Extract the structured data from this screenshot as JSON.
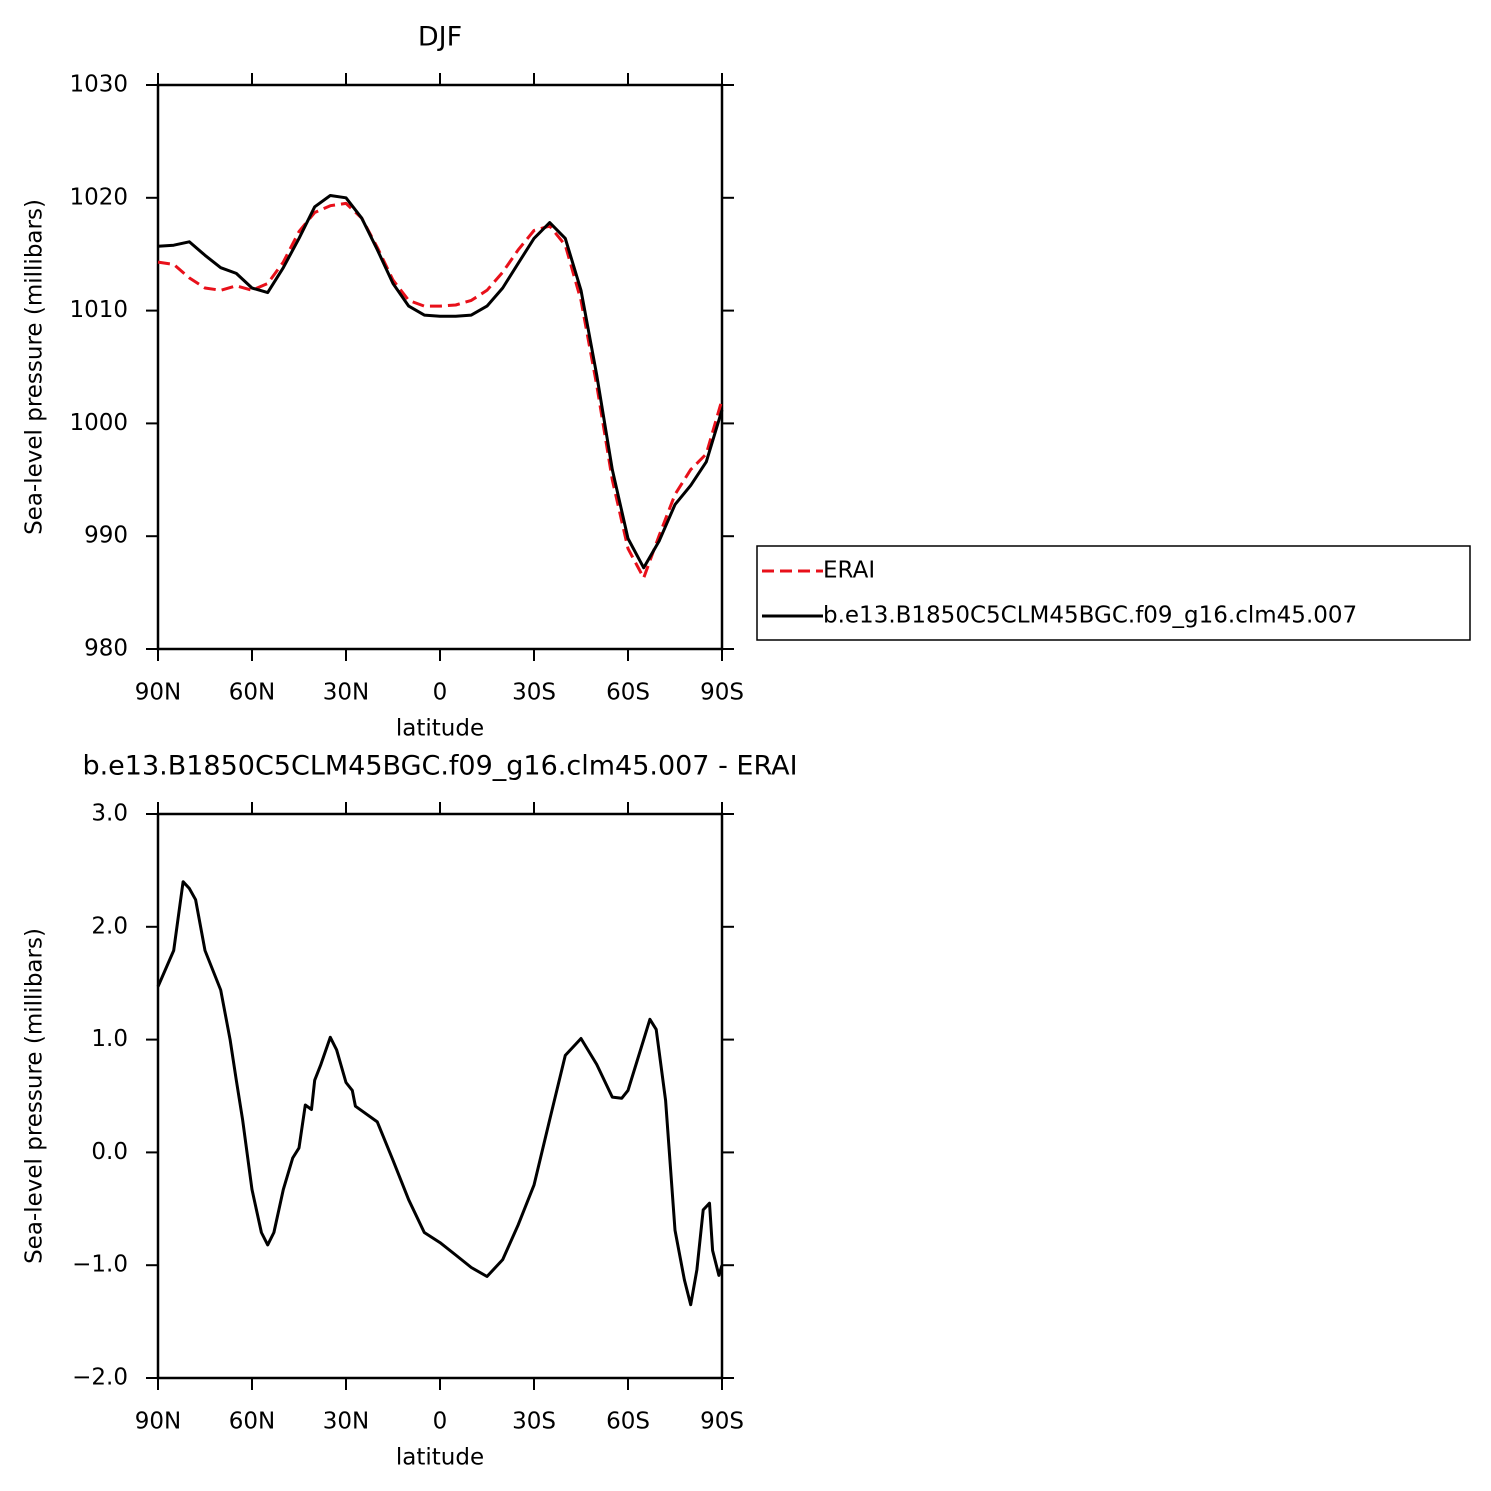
{
  "chart_data": [
    {
      "type": "line",
      "title": "DJF",
      "xlabel": "latitude",
      "ylabel": "Sea-level pressure (millibars)",
      "x": [
        90,
        85,
        80,
        75,
        70,
        65,
        60,
        55,
        50,
        45,
        40,
        35,
        30,
        25,
        20,
        15,
        10,
        5,
        0,
        -5,
        -10,
        -15,
        -20,
        -25,
        -30,
        -35,
        -40,
        -45,
        -50,
        -55,
        -60,
        -65,
        -70,
        -75,
        -80,
        -85,
        -90
      ],
      "xlim": [
        90,
        -90
      ],
      "xticks": [
        {
          "value": 90,
          "label": "90N"
        },
        {
          "value": 60,
          "label": "60N"
        },
        {
          "value": 30,
          "label": "30N"
        },
        0,
        {
          "value": -30,
          "label": "30S"
        },
        {
          "value": -60,
          "label": "60S"
        },
        {
          "value": -90,
          "label": "90S"
        }
      ],
      "ylim": [
        980,
        1030
      ],
      "yticks": [
        980,
        990,
        1000,
        1010,
        1020,
        1030
      ],
      "legend": "outside-right",
      "series": [
        {
          "name": "ERAI",
          "color": "#e8101a",
          "dashed": true,
          "values": [
            1014.3,
            1014.1,
            1012.9,
            1012.0,
            1011.8,
            1012.2,
            1011.8,
            1012.4,
            1014.3,
            1017.0,
            1018.7,
            1019.3,
            1019.5,
            1018.2,
            1015.6,
            1012.7,
            1010.9,
            1010.4,
            1010.4,
            1010.5,
            1010.9,
            1011.8,
            1013.4,
            1015.4,
            1017.1,
            1017.5,
            1015.8,
            1010.9,
            1003.4,
            995.0,
            988.9,
            986.3,
            990.1,
            993.7,
            995.9,
            997.3,
            1002.1
          ]
        },
        {
          "name": "b.e13.B1850C5CLM45BGC.f09_g16.clm45.007",
          "color": "#000000",
          "dashed": false,
          "values": [
            1015.7,
            1015.8,
            1016.1,
            1014.9,
            1013.8,
            1013.3,
            1012.0,
            1011.6,
            1013.8,
            1016.4,
            1019.2,
            1020.2,
            1020.0,
            1018.2,
            1015.4,
            1012.4,
            1010.4,
            1009.6,
            1009.5,
            1009.5,
            1009.6,
            1010.4,
            1012.0,
            1014.2,
            1016.4,
            1017.8,
            1016.4,
            1011.8,
            1004.3,
            995.9,
            989.8,
            987.2,
            989.6,
            992.8,
            994.5,
            996.6,
            1001.2
          ]
        }
      ]
    },
    {
      "type": "line",
      "title": "b.e13.B1850C5CLM45BGC.f09_g16.clm45.007 - ERAI",
      "xlabel": "latitude",
      "ylabel": "Sea-level pressure (millibars)",
      "x": [
        90,
        85,
        82,
        80,
        78,
        75,
        70,
        67,
        65,
        63,
        60,
        57,
        55,
        53,
        50,
        47,
        45,
        43,
        41,
        40,
        38,
        35,
        33,
        30,
        28,
        27,
        25,
        20,
        15,
        10,
        5,
        0,
        -5,
        -10,
        -15,
        -20,
        -25,
        -30,
        -35,
        -40,
        -45,
        -50,
        -55,
        -58,
        -60,
        -65,
        -67,
        -69,
        -72,
        -75,
        -78,
        -80,
        -82,
        -84,
        -86,
        -87,
        -89,
        -90
      ],
      "xlim": [
        90,
        -90
      ],
      "xticks": [
        {
          "value": 90,
          "label": "90N"
        },
        {
          "value": 60,
          "label": "60N"
        },
        {
          "value": 30,
          "label": "30N"
        },
        0,
        {
          "value": -30,
          "label": "30S"
        },
        {
          "value": -60,
          "label": "60S"
        },
        {
          "value": -90,
          "label": "90S"
        }
      ],
      "ylim": [
        -2,
        3
      ],
      "yticks": [
        {
          "value": -2,
          "label": "−2.0"
        },
        {
          "value": -1,
          "label": "−1.0"
        },
        {
          "value": 0,
          "label": "0.0"
        },
        {
          "value": 1,
          "label": "1.0"
        },
        {
          "value": 2,
          "label": "2.0"
        },
        {
          "value": 3,
          "label": "3.0"
        }
      ],
      "series": [
        {
          "color": "#000000",
          "dashed": false,
          "values": [
            1.47,
            1.79,
            2.4,
            2.34,
            2.24,
            1.79,
            1.44,
            1.0,
            0.64,
            0.29,
            -0.33,
            -0.71,
            -0.82,
            -0.71,
            -0.33,
            -0.05,
            0.04,
            0.42,
            0.38,
            0.64,
            0.78,
            1.02,
            0.91,
            0.62,
            0.55,
            0.41,
            0.37,
            0.27,
            -0.07,
            -0.42,
            -0.71,
            -0.8,
            -0.91,
            -1.02,
            -1.1,
            -0.95,
            -0.64,
            -0.29,
            0.29,
            0.86,
            1.01,
            0.78,
            0.49,
            0.48,
            0.55,
            1.0,
            1.18,
            1.09,
            0.46,
            -0.69,
            -1.13,
            -1.35,
            -1.04,
            -0.51,
            -0.45,
            -0.87,
            -1.09,
            -1.0
          ]
        }
      ]
    }
  ]
}
